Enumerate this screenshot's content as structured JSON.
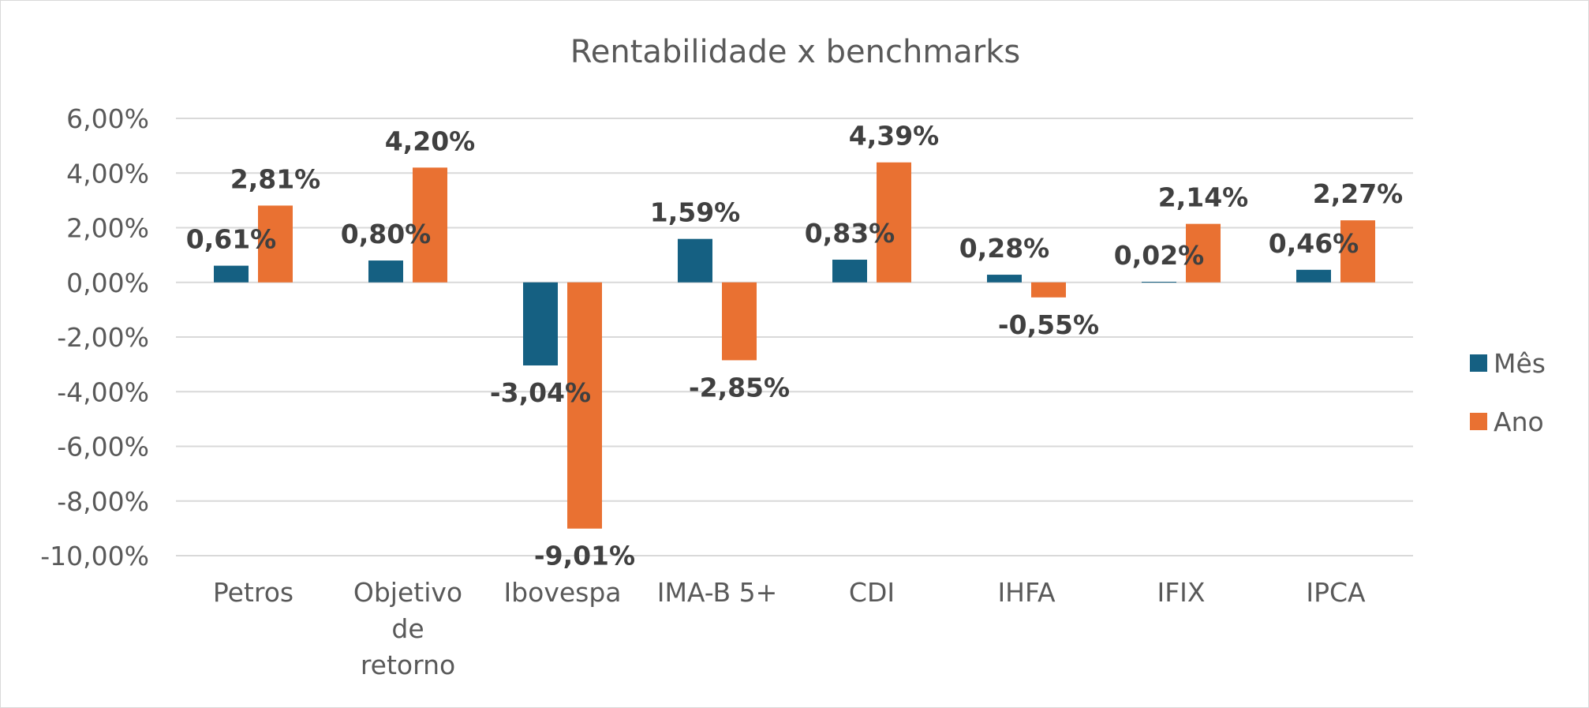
{
  "chart_data": {
    "type": "bar",
    "title": "Rentabilidade x benchmarks",
    "categories": [
      "Petros",
      "Objetivo de retorno",
      "Ibovespa",
      "IMA-B 5+",
      "CDI",
      "IHFA",
      "IFIX",
      "IPCA"
    ],
    "series": [
      {
        "name": "Mês",
        "color": "#156082",
        "values": [
          0.61,
          0.8,
          -3.04,
          1.59,
          0.83,
          0.28,
          0.02,
          0.46
        ],
        "labels": [
          "0,61%",
          "0,80%",
          "-3,04%",
          "1,59%",
          "0,83%",
          "0,28%",
          "0,02%",
          "0,46%"
        ]
      },
      {
        "name": "Ano",
        "color": "#E97132",
        "values": [
          2.81,
          4.2,
          -9.01,
          -2.85,
          4.39,
          -0.55,
          2.14,
          2.27
        ],
        "labels": [
          "2,81%",
          "4,20%",
          "-9,01%",
          "-2,85%",
          "4,39%",
          "-0,55%",
          "2,14%",
          "2,27%"
        ]
      }
    ],
    "ylim": [
      -10,
      6
    ],
    "yticks": [
      6,
      4,
      2,
      0,
      -2,
      -4,
      -6,
      -8,
      -10
    ],
    "ytick_labels": [
      "6,00%",
      "4,00%",
      "2,00%",
      "0,00%",
      "-2,00%",
      "-4,00%",
      "-6,00%",
      "-8,00%",
      "-10,00%"
    ],
    "xlabel": "",
    "ylabel": "",
    "grid": true,
    "legend_position": "right"
  }
}
